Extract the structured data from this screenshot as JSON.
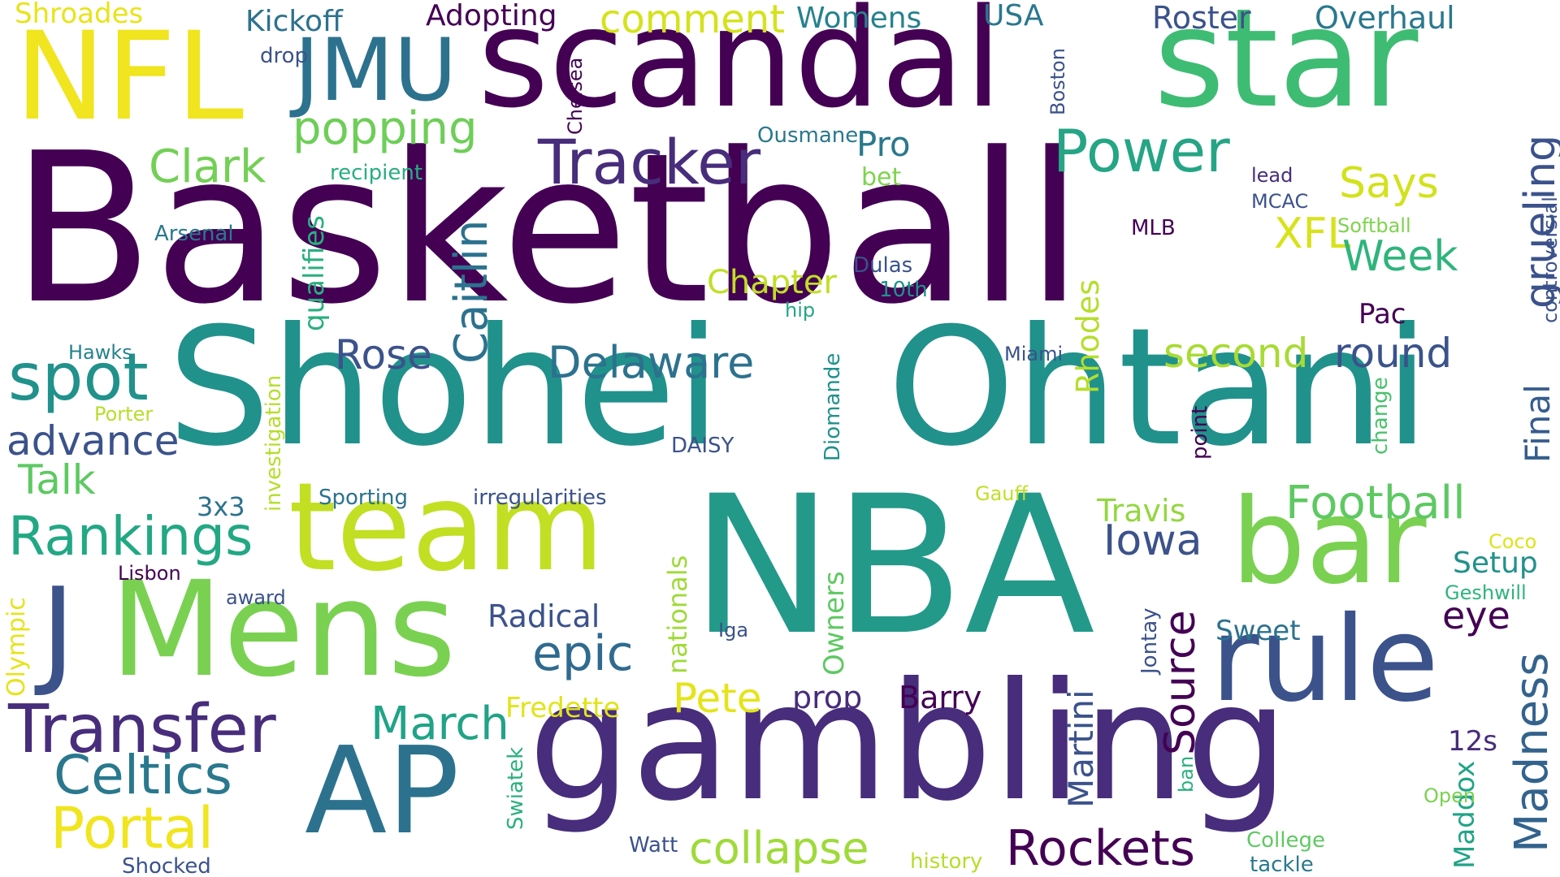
{
  "palette": {
    "p0": "#440154",
    "p1": "#472d7b",
    "p2": "#3b528b",
    "p3": "#2c728e",
    "p4": "#21918c",
    "p5": "#28ae80",
    "p6": "#5ec962",
    "p7": "#addc30",
    "p8": "#fde725"
  },
  "words": [
    "Basketball",
    "Shohei",
    "Ohtani",
    "NBA",
    "gambling",
    "scandal",
    "star",
    "team",
    "Mens",
    "NFL",
    "rule",
    "bar",
    "AP",
    "JMU",
    "J",
    "Transfer",
    "Portal",
    "Celtics",
    "Rankings",
    "spot",
    "Tracker",
    "Power",
    "Caitlin",
    "Clark",
    "popping",
    "Rockets",
    "collapse",
    "epic",
    "March",
    "Madness",
    "Delaware",
    "Rose",
    "advance",
    "Talk",
    "Football",
    "Iowa",
    "Source",
    "Says",
    "XFL",
    "Week",
    "grueling",
    "second",
    "round",
    "Final",
    "Pete",
    "Chapter",
    "comment",
    "Womens",
    "Roster",
    "Overhaul",
    "Kickoff",
    "Adopting",
    "USA",
    "Shroades",
    "drop",
    "Pro",
    "bet",
    "qualifies",
    "recipient",
    "Arsenal",
    "Hawks",
    "Porter",
    "investigation",
    "Rhodes",
    "Owners",
    "nationals",
    "Radical",
    "Fredette",
    "prop",
    "Barry",
    "Martini",
    "Jontay",
    "Swiatek",
    "Sweet",
    "eye",
    "Setup",
    "Coco",
    "Geshwill",
    "12s",
    "Maddox",
    "Open",
    "College",
    "tackle",
    "history",
    "Watt",
    "Shocked",
    "3x3",
    "Lisbon",
    "award",
    "Olympic",
    "Sporting",
    "irregularities",
    "Travis",
    "DAISY",
    "Diomande",
    "Gauff",
    "point",
    "change",
    "ban",
    "Iga",
    "Miami",
    "hip",
    "Dulas",
    "10th",
    "MLB",
    "MCAC",
    "lead",
    "Softball",
    "controversial",
    "Chelsea",
    "Boston",
    "Ousmane",
    "Pac"
  ]
}
